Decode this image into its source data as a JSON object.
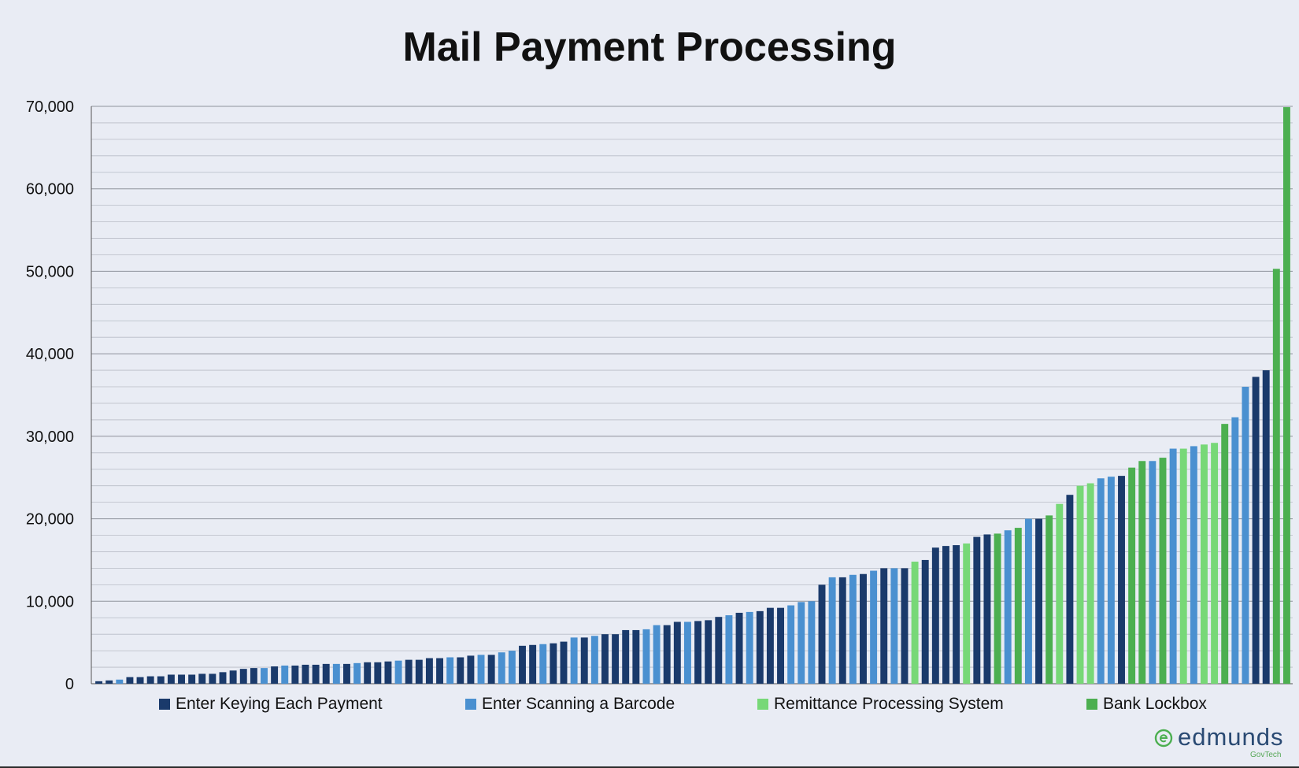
{
  "chart_data": {
    "type": "bar",
    "title": "Mail Payment Processing",
    "xlabel": "",
    "ylabel": "",
    "ylim": [
      0,
      70000
    ],
    "yticks": [
      "0",
      "10,000",
      "20,000",
      "30,000",
      "40,000",
      "50,000",
      "60,000",
      "70,000"
    ],
    "grid": true,
    "legend_position": "bottom",
    "series_names": [
      "Enter Keying Each Payment",
      "Enter Scanning a Barcode",
      "Remittance Processing System",
      "Bank Lockbox"
    ],
    "series_colors": [
      "#1a3a6b",
      "#4a90d0",
      "#77d877",
      "#4caf50"
    ],
    "values": [
      300,
      400,
      500,
      800,
      800,
      900,
      900,
      1100,
      1100,
      1100,
      1200,
      1200,
      1400,
      1600,
      1800,
      1900,
      1900,
      2100,
      2200,
      2200,
      2300,
      2300,
      2400,
      2400,
      2400,
      2500,
      2600,
      2600,
      2700,
      2800,
      2900,
      2900,
      3100,
      3100,
      3200,
      3200,
      3400,
      3500,
      3500,
      3800,
      4000,
      4600,
      4700,
      4800,
      4900,
      5100,
      5600,
      5600,
      5800,
      6000,
      6000,
      6500,
      6500,
      6600,
      7100,
      7100,
      7500,
      7500,
      7600,
      7700,
      8100,
      8300,
      8600,
      8700,
      8800,
      9200,
      9200,
      9500,
      9900,
      10000,
      12000,
      12900,
      12900,
      13200,
      13300,
      13700,
      14000,
      14000,
      14000,
      14800,
      15000,
      16500,
      16700,
      16800,
      17000,
      17800,
      18100,
      18200,
      18600,
      18900,
      20000,
      20000,
      20400,
      21800,
      22900,
      24000,
      24300,
      24900,
      25100,
      25200,
      26200,
      27000,
      27000,
      27400,
      28500,
      28500,
      28800,
      29000,
      29200,
      31500,
      32300,
      36000,
      37200,
      38000,
      50300,
      69900
    ],
    "series_index": [
      0,
      0,
      1,
      0,
      0,
      0,
      0,
      0,
      0,
      0,
      0,
      0,
      0,
      0,
      0,
      0,
      1,
      0,
      1,
      0,
      0,
      0,
      0,
      1,
      0,
      1,
      0,
      0,
      0,
      1,
      0,
      0,
      0,
      0,
      1,
      0,
      0,
      1,
      0,
      1,
      1,
      0,
      0,
      1,
      0,
      0,
      1,
      0,
      1,
      0,
      0,
      0,
      0,
      1,
      1,
      0,
      0,
      1,
      0,
      0,
      0,
      1,
      0,
      1,
      0,
      0,
      0,
      1,
      1,
      1,
      0,
      1,
      0,
      1,
      0,
      1,
      0,
      1,
      0,
      2,
      0,
      0,
      0,
      0,
      2,
      0,
      0,
      3,
      1,
      3,
      1,
      0,
      3,
      2,
      0,
      2,
      2,
      1,
      1,
      0,
      3,
      3,
      1,
      3,
      1,
      2,
      1,
      2,
      2,
      3,
      1,
      1,
      0,
      0,
      3,
      3
    ]
  },
  "legend": [
    {
      "label": "Enter Keying Each Payment",
      "color": "#1a3a6b"
    },
    {
      "label": "Enter Scanning a Barcode",
      "color": "#4a90d0"
    },
    {
      "label": "Remittance Processing System",
      "color": "#77d877"
    },
    {
      "label": "Bank Lockbox",
      "color": "#4caf50"
    }
  ],
  "logo": {
    "name": "edmunds",
    "sub": "GovTech"
  }
}
